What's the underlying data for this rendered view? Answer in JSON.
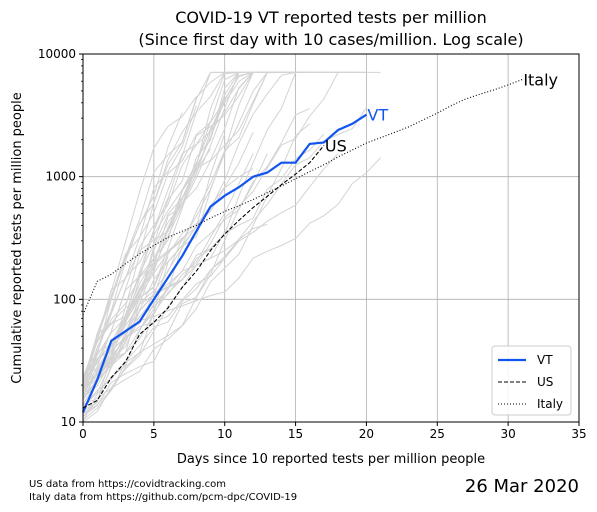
{
  "chart_data": {
    "type": "line",
    "title": "COVID-19 VT reported tests per million",
    "subtitle": "(Since first day with 10 cases/million. Log scale)",
    "xlabel": "Days since 10 reported tests per million people",
    "ylabel": "Cumulative reported tests per million people",
    "xlim": [
      0,
      35
    ],
    "ylim": [
      10,
      10000
    ],
    "yscale": "log",
    "grid": true,
    "legend_position": "bottom-right",
    "x_ticks": [
      0,
      5,
      10,
      15,
      20,
      25,
      30,
      35
    ],
    "x_tick_labels": [
      "0",
      "5",
      "10",
      "15",
      "20",
      "25",
      "30",
      "35"
    ],
    "y_ticks": [
      10,
      100,
      1000,
      10000
    ],
    "y_tick_labels": [
      "10",
      "100",
      "1000",
      "10000"
    ],
    "series": [
      {
        "name": "VT",
        "label": "VT",
        "color": "#1155ee",
        "style": "solid",
        "x": [
          0,
          1,
          2,
          3,
          4,
          5,
          6,
          7,
          8,
          9,
          10,
          11,
          12,
          13,
          14,
          15,
          16,
          17,
          18,
          19,
          20
        ],
        "y": [
          12,
          22,
          46,
          55,
          66,
          100,
          150,
          225,
          360,
          570,
          700,
          820,
          1000,
          1080,
          1300,
          1300,
          1850,
          1900,
          2400,
          2700,
          3200
        ]
      },
      {
        "name": "US",
        "label": "US",
        "color": "#000000",
        "style": "dashed",
        "x": [
          0,
          1,
          2,
          3,
          4,
          5,
          6,
          7,
          8,
          9,
          10,
          11,
          12,
          13,
          14,
          15,
          16,
          17
        ],
        "y": [
          13,
          15,
          23,
          31,
          52,
          65,
          85,
          125,
          170,
          250,
          340,
          440,
          560,
          690,
          860,
          1050,
          1300,
          1800
        ]
      },
      {
        "name": "Italy",
        "label": "Italy",
        "color": "#000000",
        "style": "dotted",
        "x": [
          0,
          1,
          2,
          3,
          4,
          5,
          6,
          7,
          8,
          9,
          10,
          11,
          12,
          13,
          14,
          15,
          16,
          17,
          18,
          19,
          20,
          21,
          22,
          23,
          24,
          25,
          26,
          27,
          28,
          29,
          30,
          31
        ],
        "y": [
          75,
          140,
          160,
          195,
          235,
          275,
          320,
          360,
          400,
          460,
          520,
          580,
          650,
          740,
          840,
          960,
          1100,
          1250,
          1450,
          1650,
          1880,
          2080,
          2300,
          2550,
          2900,
          3300,
          3800,
          4300,
          4700,
          5100,
          5600,
          6200
        ]
      }
    ],
    "background_series_color": "#d3d3d3",
    "legend": [
      "VT",
      "US",
      "Italy"
    ]
  },
  "footnotes": [
    "US data from https://covidtracking.com",
    "Italy data from https://github.com/pcm-dpc/COVID-19"
  ],
  "date_label": "26 Mar 2020"
}
